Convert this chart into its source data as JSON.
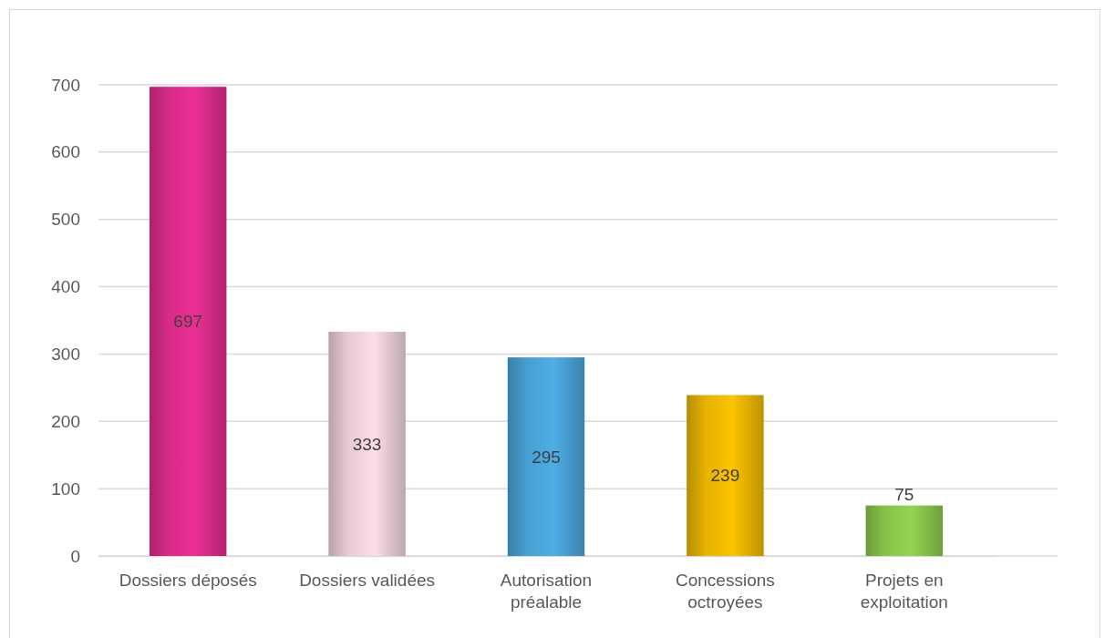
{
  "chart_data": {
    "type": "bar",
    "categories": [
      "Dossiers déposés",
      "Dossiers validées",
      "Autorisation préalable",
      "Concessions octroyées",
      "Projets en exploitation"
    ],
    "values": [
      697,
      333,
      295,
      239,
      75
    ],
    "colors": [
      "#ec2f95",
      "#fcdde9",
      "#4eaee6",
      "#fcc300",
      "#92d550"
    ],
    "ylim": [
      0,
      700
    ],
    "yticks": [
      0,
      100,
      200,
      300,
      400,
      500,
      600,
      700
    ],
    "grid": "y",
    "data_labels": true
  }
}
